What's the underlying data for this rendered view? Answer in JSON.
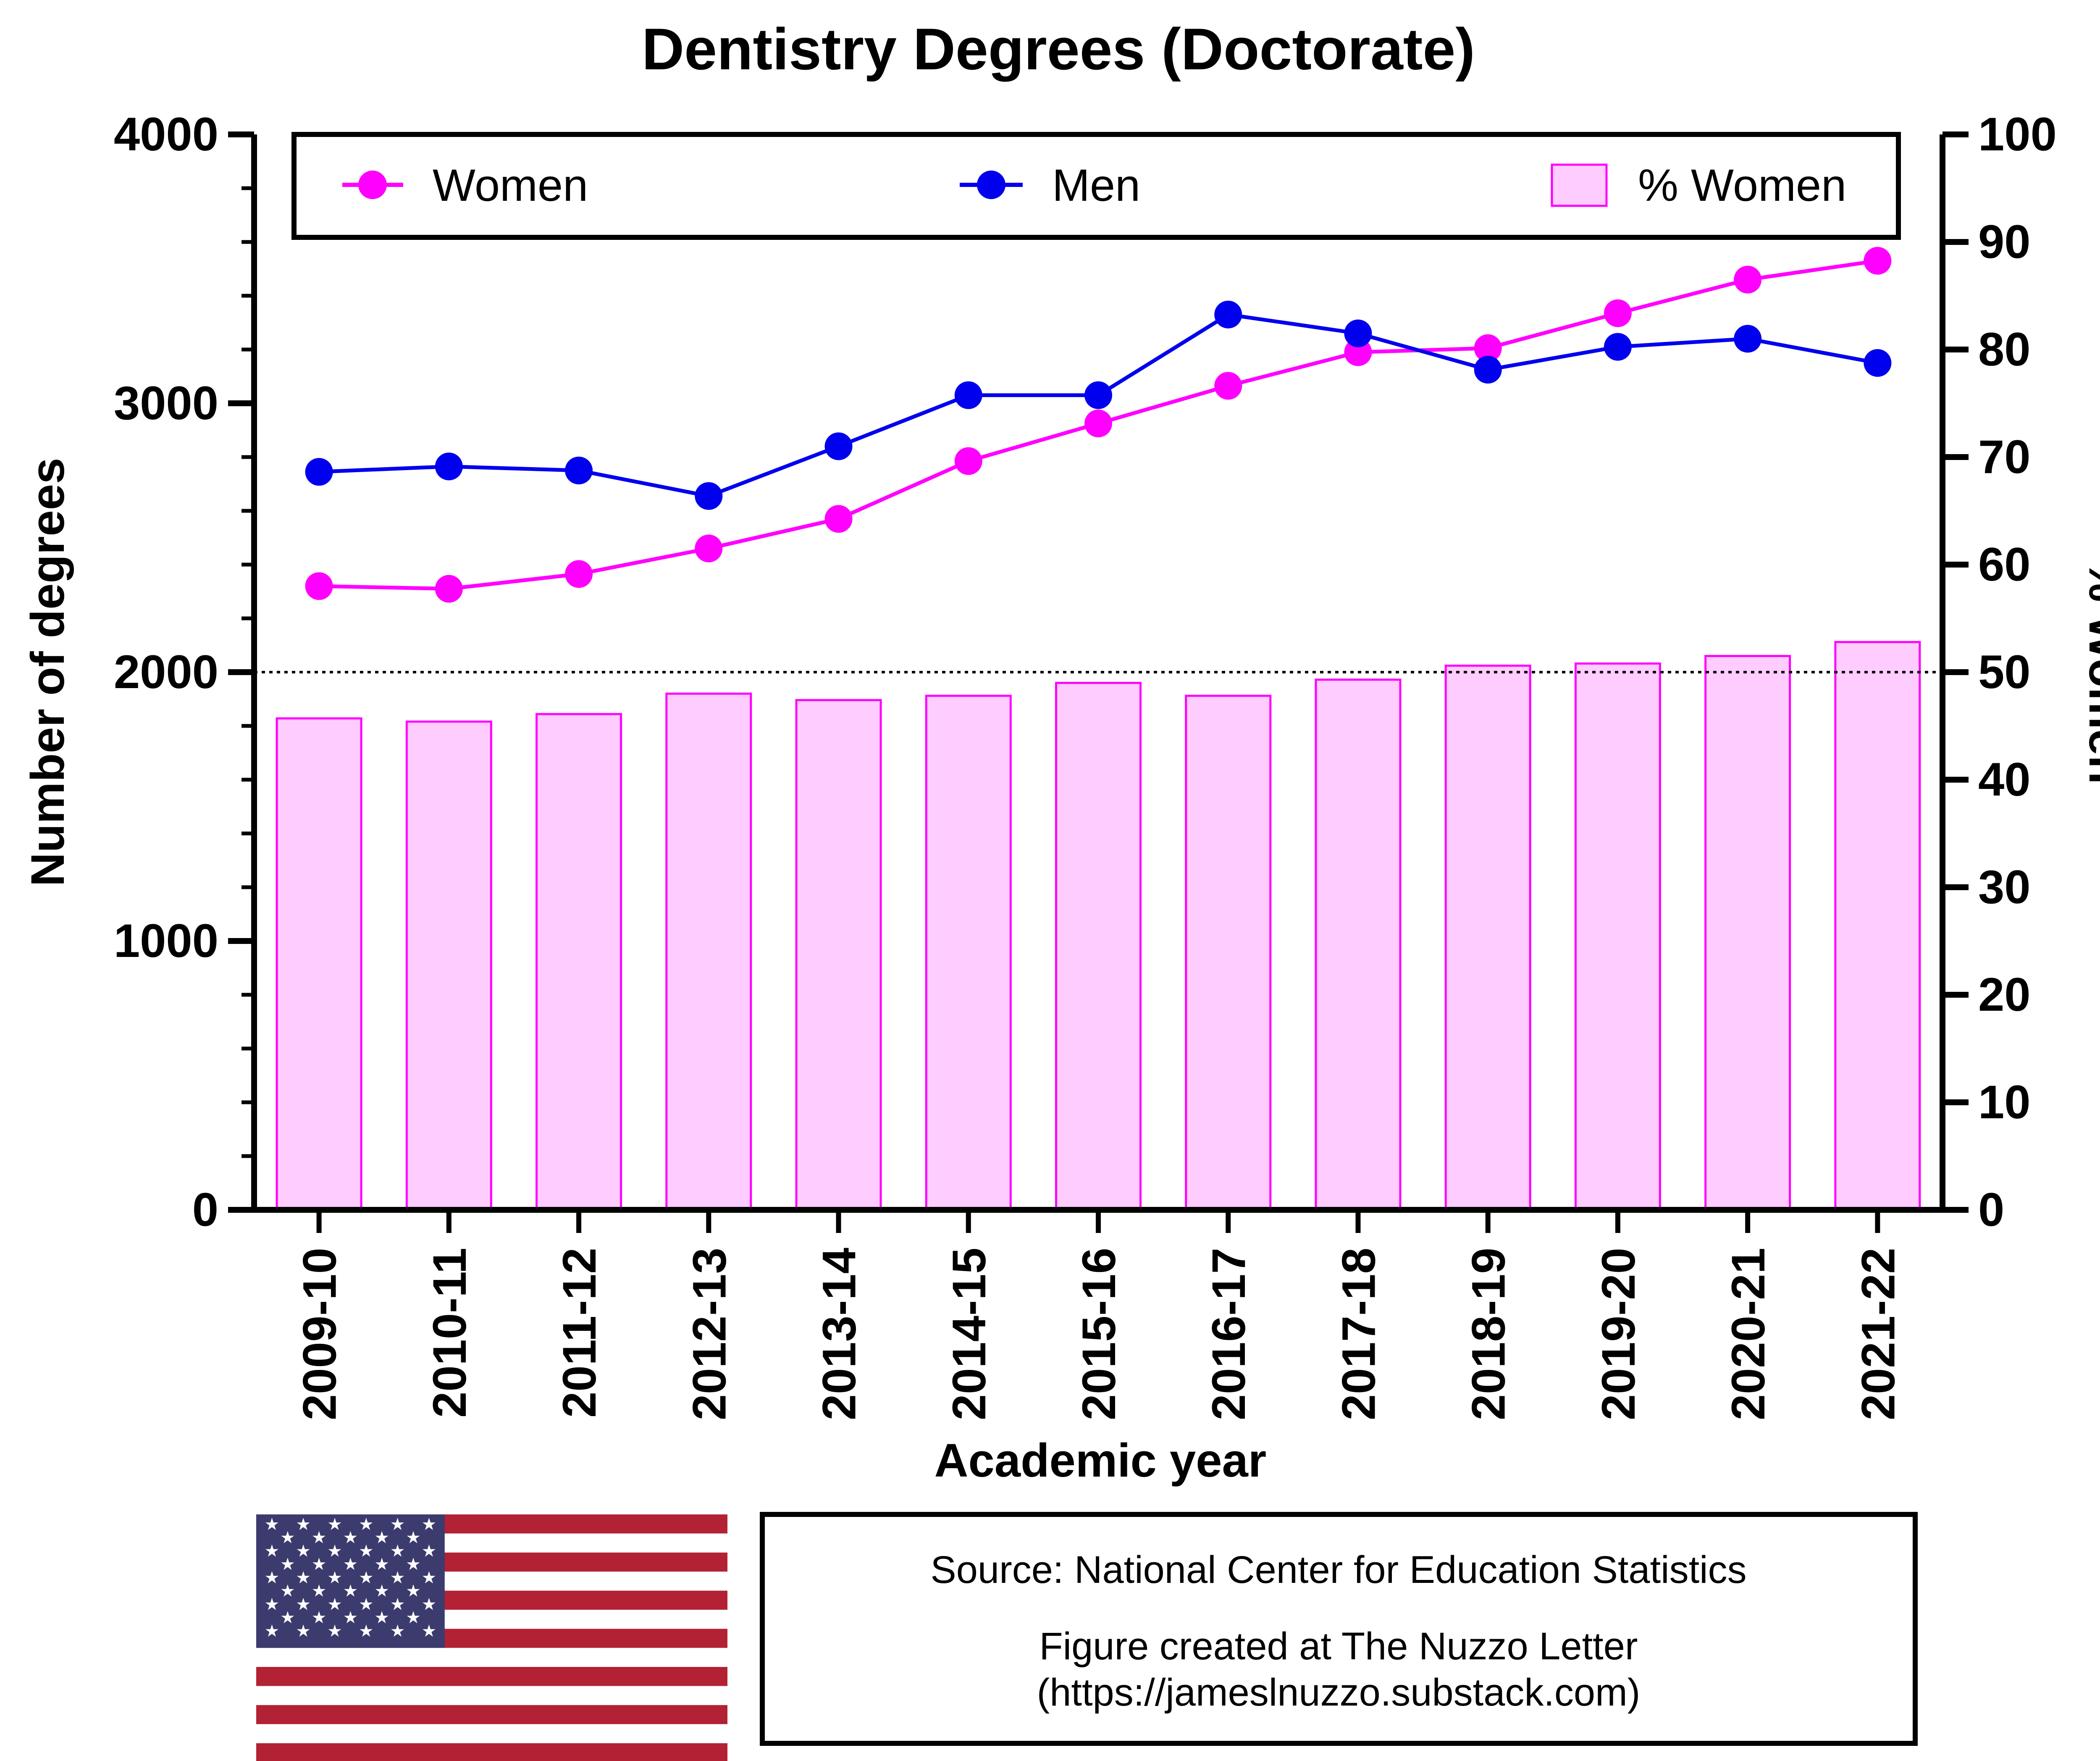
{
  "chart_data": {
    "type": "bar",
    "title": "Dentistry Degrees (Doctorate)",
    "xlabel": "Academic year",
    "ylabel": "Number of degrees",
    "y2label": "% Women",
    "categories": [
      "2009-10",
      "2010-11",
      "2011-12",
      "2012-13",
      "2013-14",
      "2014-15",
      "2015-16",
      "2016-17",
      "2017-18",
      "2018-19",
      "2019-20",
      "2020-21",
      "2021-22"
    ],
    "ylim": [
      0,
      4000
    ],
    "y2lim": [
      0,
      100
    ],
    "yticks": [
      0,
      1000,
      2000,
      3000,
      4000
    ],
    "y2ticks": [
      0,
      10,
      20,
      30,
      40,
      50,
      60,
      70,
      80,
      90,
      100
    ],
    "reference_line": {
      "axis": "y2",
      "value": 50,
      "style": "dotted"
    },
    "grid": false,
    "legend_position": "top",
    "series": [
      {
        "name": "% Women",
        "type": "bar",
        "axis": "y2",
        "color": "#FF00FF",
        "fill": "#FFCCFF",
        "values": [
          45.7,
          45.4,
          46.1,
          48.0,
          47.4,
          47.8,
          49.0,
          47.8,
          49.3,
          50.6,
          50.8,
          51.5,
          52.8
        ]
      },
      {
        "name": "Women",
        "type": "line",
        "axis": "y",
        "color": "#FF00FF",
        "values": [
          2320,
          2310,
          2365,
          2460,
          2570,
          2785,
          2925,
          3065,
          3190,
          3205,
          3335,
          3460,
          3530
        ]
      },
      {
        "name": "Men",
        "type": "line",
        "axis": "y",
        "color": "#0000EE",
        "values": [
          2745,
          2765,
          2750,
          2655,
          2840,
          3030,
          3030,
          3330,
          3260,
          3125,
          3210,
          3240,
          3150
        ]
      }
    ]
  },
  "legend": {
    "women_label": "Women",
    "men_label": "Men",
    "pct_label": "% Women"
  },
  "source_box": {
    "line1": "Source: National Center for Education Statistics",
    "line2": "Figure created at The Nuzzo Letter",
    "line3": "(https://jameslnuzzo.substack.com)"
  },
  "flag": {
    "name": "us-flag-icon",
    "stripe_red": "#B22234",
    "canton_blue": "#3C3B6E"
  }
}
